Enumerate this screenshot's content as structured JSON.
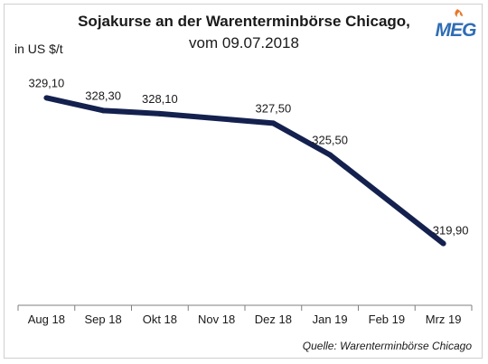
{
  "title": "Sojakurse an der Warenterminbörse Chicago,",
  "subtitle": "vom 09.07.2018",
  "logo_text": "MEG",
  "source": "Quelle: Warenterminbörse Chicago",
  "colors": {
    "line": "#14214f",
    "axis": "#7f7f7f",
    "logo": "#2f6db5",
    "logo_flame": "#e8782a"
  },
  "chart_data": {
    "type": "line",
    "title": "Sojakurse an der Warenterminbörse Chicago,",
    "subtitle": "vom 09.07.2018",
    "xlabel": "",
    "ylabel": "in US $/t",
    "categories": [
      "Aug 18",
      "Sep 18",
      "Okt 18",
      "Nov 18",
      "Dez 18",
      "Jan 19",
      "Feb 19",
      "Mrz 19"
    ],
    "series": [
      {
        "points": [
          {
            "x": "Aug 18",
            "y": 329.1,
            "label": "329,10"
          },
          {
            "x": "Sep 18",
            "y": 328.3,
            "label": "328,30"
          },
          {
            "x": "Okt 18",
            "y": 328.1,
            "label": "328,10"
          },
          {
            "x": "Dez 18",
            "y": 327.5,
            "label": "327,50"
          },
          {
            "x": "Jan 19",
            "y": 325.5,
            "label": "325,50"
          },
          {
            "x": "Mrz 19",
            "y": 319.9,
            "label": "319,90"
          }
        ]
      }
    ],
    "ylim": [
      316,
      331
    ],
    "grid": false,
    "legend": "none"
  }
}
